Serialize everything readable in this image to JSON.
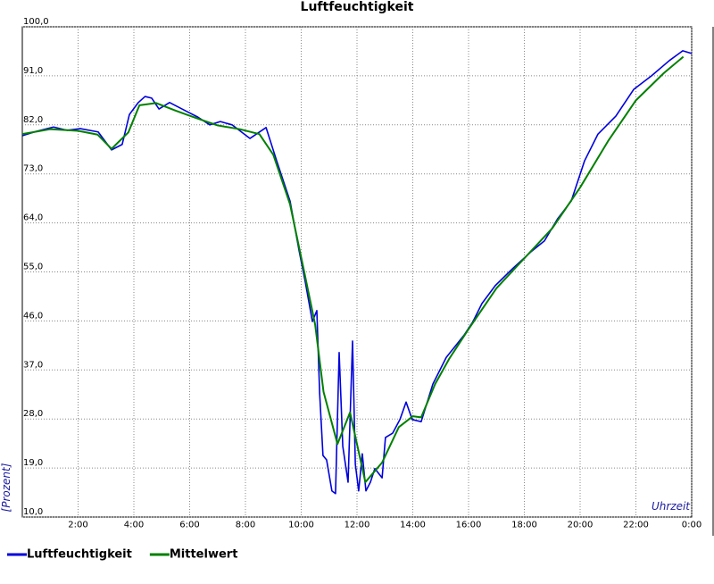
{
  "chart_data": {
    "type": "line",
    "title": "Luftfeuchtigkeit",
    "y_label": "[Prozent]",
    "x_label": "Uhrzeit",
    "xlim": [
      0,
      24
    ],
    "xticks": [
      {
        "value": 2,
        "label": "2:00"
      },
      {
        "value": 4,
        "label": "4:00"
      },
      {
        "value": 6,
        "label": "6:00"
      },
      {
        "value": 8,
        "label": "8:00"
      },
      {
        "value": 10,
        "label": "10:00"
      },
      {
        "value": 12,
        "label": "12:00"
      },
      {
        "value": 14,
        "label": "14:00"
      },
      {
        "value": 16,
        "label": "16:00"
      },
      {
        "value": 18,
        "label": "18:00"
      },
      {
        "value": 20,
        "label": "20:00"
      },
      {
        "value": 22,
        "label": "22:00"
      },
      {
        "value": 24,
        "label": "0:00"
      }
    ],
    "ylim": [
      10,
      100
    ],
    "yticks": [
      {
        "value": 10,
        "label": "10,0"
      },
      {
        "value": 19,
        "label": "19,0"
      },
      {
        "value": 28,
        "label": "28,0"
      },
      {
        "value": 37,
        "label": "37,0"
      },
      {
        "value": 46,
        "label": "46,0"
      },
      {
        "value": 55,
        "label": "55,0"
      },
      {
        "value": 64,
        "label": "64,0"
      },
      {
        "value": 73,
        "label": "73,0"
      },
      {
        "value": 82,
        "label": "82,0"
      },
      {
        "value": 91,
        "label": "91,0"
      },
      {
        "value": 100,
        "label": "100,0"
      }
    ],
    "grid": true,
    "series": [
      {
        "name": "Luftfeuchtigkeit",
        "color": "#0000dd",
        "x": [
          0,
          0.5,
          1.12,
          1.6,
          2.08,
          2.72,
          3.2,
          3.58,
          3.84,
          4.16,
          4.4,
          4.64,
          4.9,
          5.28,
          5.92,
          6.3,
          6.72,
          7.1,
          7.52,
          8.16,
          8.74,
          9.12,
          9.6,
          9.92,
          10.14,
          10.4,
          10.56,
          10.66,
          10.78,
          10.91,
          11.1,
          11.23,
          11.36,
          11.49,
          11.68,
          11.84,
          11.94,
          12.06,
          12.19,
          12.32,
          12.48,
          12.64,
          12.9,
          13.02,
          13.28,
          13.54,
          13.76,
          13.98,
          14.3,
          14.72,
          15.2,
          15.84,
          16.16,
          16.48,
          16.96,
          17.6,
          18.24,
          18.72,
          19.2,
          19.68,
          20.16,
          20.64,
          21.28,
          21.92,
          22.56,
          23.2,
          23.68,
          24
        ],
        "values": [
          80.0,
          80.8,
          81.6,
          81.0,
          81.3,
          80.7,
          77.4,
          78.4,
          83.9,
          86.1,
          87.2,
          86.9,
          84.9,
          86.1,
          84.4,
          83.4,
          82.0,
          82.6,
          82.0,
          79.5,
          81.5,
          75.4,
          68.0,
          59.0,
          53.3,
          45.9,
          47.9,
          32.8,
          21.3,
          20.5,
          14.8,
          14.3,
          40.2,
          23.0,
          16.4,
          42.3,
          19.7,
          14.8,
          21.6,
          14.8,
          16.4,
          18.9,
          17.2,
          24.6,
          25.4,
          27.9,
          31.1,
          27.9,
          27.5,
          34.4,
          39.3,
          43.4,
          45.9,
          49.2,
          52.5,
          55.7,
          58.7,
          60.7,
          64.8,
          68.0,
          75.4,
          80.3,
          83.6,
          88.5,
          91.0,
          93.8,
          95.6,
          95.1
        ]
      },
      {
        "name": "Mittelwert",
        "color": "#008000",
        "x": [
          0,
          1,
          2,
          2.7,
          3.2,
          3.8,
          4.2,
          4.8,
          5.5,
          6.2,
          7,
          7.8,
          8.5,
          9,
          9.6,
          10.1,
          10.5,
          10.8,
          11.3,
          11.75,
          12.3,
          12.9,
          13.5,
          14,
          14.3,
          14.8,
          15.3,
          16,
          17,
          18,
          19,
          20,
          21,
          22,
          23,
          23.7
        ],
        "values": [
          80.3,
          81.2,
          80.9,
          80.2,
          77.6,
          80.6,
          85.6,
          86.0,
          84.6,
          83.3,
          81.9,
          81.2,
          80.3,
          76.5,
          67.4,
          55.2,
          45.3,
          33.0,
          23.4,
          29.2,
          16.4,
          20.0,
          26.5,
          28.5,
          28.3,
          34.4,
          39.0,
          44.5,
          52.0,
          57.5,
          63.0,
          70.5,
          79.0,
          86.5,
          91.5,
          94.5
        ]
      }
    ]
  }
}
